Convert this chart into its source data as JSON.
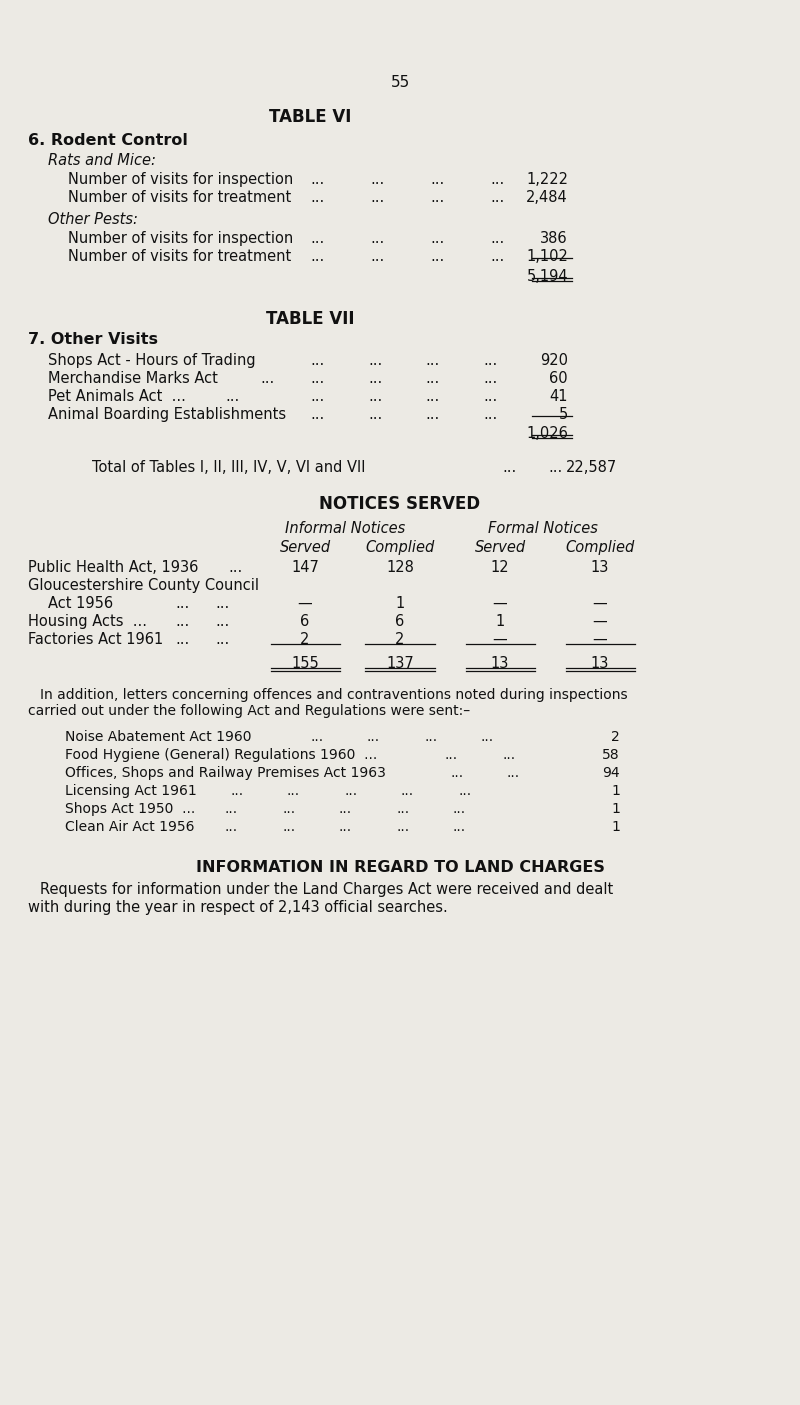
{
  "page_number": "55",
  "bg_color": "#eceae4",
  "text_color": "#111111",
  "table6_title": "TABLE VI",
  "section6_header": "6. Rodent Control",
  "rats_mice_label": "Rats and Mice:",
  "rats_inspection_label": "Number of visits for inspection",
  "rats_inspection_val": "1,222",
  "rats_treatment_label": "Number of visits for treatment",
  "rats_treatment_val": "2,484",
  "other_pests_label": "Other Pests:",
  "pests_inspection_label": "Number of visits for inspection",
  "pests_inspection_val": "386",
  "pests_treatment_label": "Number of visits for treatment",
  "pests_treatment_val": "1,102",
  "rodent_total": "5,194",
  "table7_title": "TABLE VII",
  "section7_header": "7. Other Visits",
  "shops_act_label": "Shops Act - Hours of Trading",
  "shops_act_val": "920",
  "merch_label": "Merchandise Marks Act",
  "merch_val": "60",
  "pet_label": "Pet Animals Act  ...",
  "pet_val": "41",
  "animal_label": "Animal Boarding Establishments",
  "animal_val": "5",
  "other_total": "1,026",
  "grand_total_label": "Total of Tables I, II, III, IV, V, VI and VII",
  "grand_total_val": "22,587",
  "notices_title": "NOTICES SERVED",
  "informal_header": "Informal Notices",
  "formal_header": "Formal Notices",
  "served_header": "Served",
  "complied_header": "Complied",
  "notice_rows": [
    {
      "label": "Public Health Act, 1936",
      "dots": "...",
      "inf_served": "147",
      "inf_complied": "128",
      "form_served": "12",
      "form_complied": "13"
    },
    {
      "label": "Gloucestershire County Council",
      "inf_served": "",
      "inf_complied": "",
      "form_served": "",
      "form_complied": ""
    },
    {
      "label": "    Act 1956",
      "inf_served": "—",
      "inf_complied": "1",
      "form_served": "—",
      "form_complied": "—"
    },
    {
      "label": "Housing Acts  ...",
      "inf_served": "6",
      "inf_complied": "6",
      "form_served": "1",
      "form_complied": "—"
    },
    {
      "label": "Factories Act 1961",
      "inf_served": "2",
      "inf_complied": "2",
      "form_served": "—",
      "form_complied": "—"
    }
  ],
  "notice_totals": {
    "inf_served": "155",
    "inf_complied": "137",
    "form_served": "13",
    "form_complied": "13"
  },
  "addition_text1": "In addition, letters concerning offences and contraventions noted during inspections",
  "addition_text2": "carried out under the following Act and Regulations were sent:–",
  "letters_rows": [
    {
      "label": "Noise Abatement Act 1960",
      "extra_dots": "...         ...         ...         ...",
      "val": "2"
    },
    {
      "label": "Food Hygiene (General) Regulations 1960  ...",
      "extra_dots": "...         ...         ...",
      "val": "58"
    },
    {
      "label": "Offices, Shops and Railway Premises Act 1963",
      "extra_dots": "...         ...         ...",
      "val": "94"
    },
    {
      "label": "Licensing Act 1961",
      "extra_dots": "...         ...         ...         ...         ...",
      "val": "1"
    },
    {
      "label": "Shops Act 1950  ...",
      "extra_dots": "...         ...         ...         ...         ...",
      "val": "1"
    },
    {
      "label": "Clean Air Act 1956",
      "extra_dots": "...         ...         ...         ...         ...",
      "val": "1"
    }
  ],
  "land_charges_title": "INFORMATION IN REGARD TO LAND CHARGES",
  "land_charges_text1": "Requests for information under the Land Charges Act were received and dealt",
  "land_charges_text2": "with during the year in respect of 2,143 official searches."
}
